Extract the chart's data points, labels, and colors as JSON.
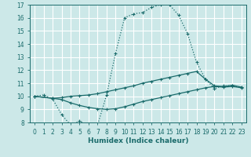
{
  "xlabel": "Humidex (Indice chaleur)",
  "bg_color": "#cce8e8",
  "grid_color": "#ffffff",
  "line_color": "#1a6b6b",
  "xlim": [
    -0.5,
    23.5
  ],
  "ylim": [
    8,
    17
  ],
  "xticks": [
    0,
    1,
    2,
    3,
    4,
    5,
    6,
    7,
    8,
    9,
    10,
    11,
    12,
    13,
    14,
    15,
    16,
    17,
    18,
    19,
    20,
    21,
    22,
    23
  ],
  "yticks": [
    8,
    9,
    10,
    11,
    12,
    13,
    14,
    15,
    16,
    17
  ],
  "line1_x": [
    0,
    1,
    2,
    3,
    4,
    5,
    6,
    7,
    8,
    9,
    10,
    11,
    12,
    13,
    14,
    15,
    16,
    17,
    18,
    19,
    20,
    21,
    22,
    23
  ],
  "line1_y": [
    10.0,
    10.1,
    9.8,
    8.6,
    7.8,
    8.1,
    7.8,
    7.8,
    10.1,
    13.3,
    16.0,
    16.3,
    16.4,
    16.8,
    17.0,
    17.0,
    16.2,
    14.8,
    12.6,
    11.3,
    10.6,
    10.8,
    10.8,
    10.7
  ],
  "line2_x": [
    0,
    2,
    3,
    4,
    5,
    6,
    7,
    8,
    9,
    10,
    11,
    12,
    13,
    14,
    15,
    16,
    17,
    18,
    19,
    20,
    21,
    22,
    23
  ],
  "line2_y": [
    10.0,
    9.85,
    9.9,
    10.0,
    10.05,
    10.1,
    10.2,
    10.35,
    10.5,
    10.65,
    10.8,
    11.0,
    11.15,
    11.3,
    11.45,
    11.6,
    11.75,
    11.9,
    11.3,
    10.8,
    10.75,
    10.85,
    10.7
  ],
  "line3_x": [
    0,
    2,
    3,
    4,
    5,
    6,
    7,
    8,
    9,
    10,
    11,
    12,
    13,
    14,
    15,
    16,
    17,
    18,
    19,
    20,
    21,
    22,
    23
  ],
  "line3_y": [
    10.0,
    9.85,
    9.75,
    9.5,
    9.3,
    9.15,
    9.05,
    9.0,
    9.05,
    9.2,
    9.4,
    9.6,
    9.75,
    9.9,
    10.05,
    10.2,
    10.35,
    10.5,
    10.65,
    10.75,
    10.7,
    10.75,
    10.65
  ]
}
